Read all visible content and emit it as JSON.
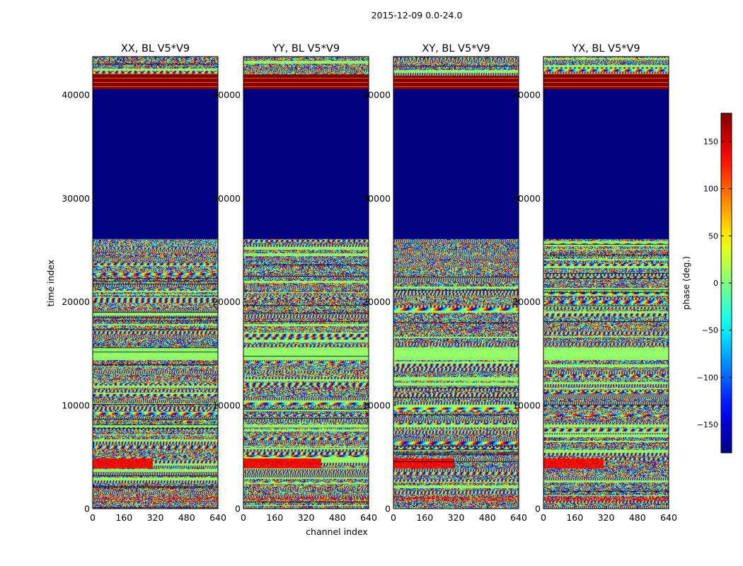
{
  "chart_data": {
    "type": "heatmap",
    "suptitle": "2015-12-09 0.0-24.0",
    "xlabel": "channel index",
    "ylabel": "time index",
    "xlim": [
      0,
      640
    ],
    "ylim": [
      0,
      43700
    ],
    "xticks": [
      0,
      160,
      320,
      480,
      640
    ],
    "yticks": [
      0,
      10000,
      20000,
      30000,
      40000
    ],
    "colorbar": {
      "label": "phase (deg.)",
      "range": [
        -180,
        180
      ],
      "ticks": [
        -150,
        -100,
        -50,
        0,
        50,
        100,
        150
      ],
      "colormap": "jet"
    },
    "panels": [
      {
        "title": "XX, BL V5*V9",
        "seed": 11
      },
      {
        "title": "YY, BL V5*V9",
        "seed": 23
      },
      {
        "title": "XY, BL V5*V9",
        "seed": 37
      },
      {
        "title": "YX, BL V5*V9",
        "seed": 51
      }
    ],
    "flagged_band": {
      "time_range": [
        26100,
        40600
      ],
      "phase": -180
    },
    "saturated_band": {
      "time_range": [
        40600,
        42100
      ],
      "phase": 180
    }
  }
}
